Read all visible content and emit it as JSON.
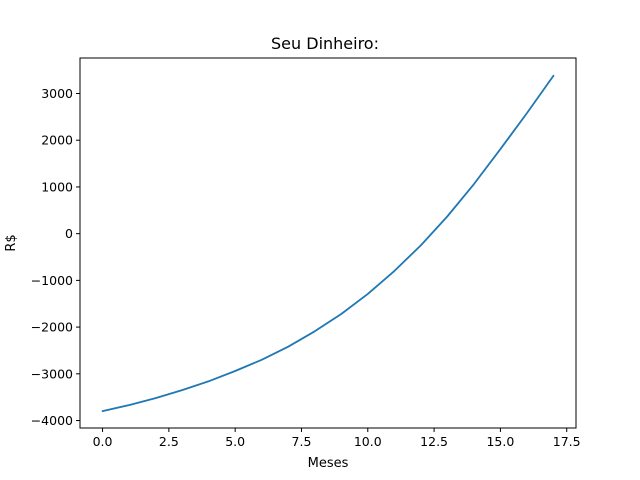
{
  "chart_data": {
    "type": "line",
    "title": "Seu Dinheiro:",
    "xlabel": "Meses",
    "ylabel": "R$",
    "xlim": [
      -0.85,
      17.85
    ],
    "ylim": [
      -4160,
      3760
    ],
    "xticks": [
      0.0,
      2.5,
      5.0,
      7.5,
      10.0,
      12.5,
      15.0,
      17.5
    ],
    "xtick_labels": [
      "0.0",
      "2.5",
      "5.0",
      "7.5",
      "10.0",
      "12.5",
      "15.0",
      "17.5"
    ],
    "yticks": [
      -4000,
      -3000,
      -2000,
      -1000,
      0,
      1000,
      2000,
      3000
    ],
    "ytick_labels": [
      "−4000",
      "−3000",
      "−2000",
      "−1000",
      "0",
      "1000",
      "2000",
      "3000"
    ],
    "grid": false,
    "series": [
      {
        "color": "#1f77b4",
        "x": [
          0,
          1,
          2,
          3,
          4,
          5,
          6,
          7,
          8,
          9,
          10,
          11,
          12,
          13,
          14,
          15,
          16,
          17
        ],
        "y": [
          -3800,
          -3670,
          -3520,
          -3350,
          -3160,
          -2940,
          -2700,
          -2420,
          -2090,
          -1720,
          -1290,
          -800,
          -250,
          370,
          1060,
          1810,
          2580,
          3380
        ]
      }
    ]
  }
}
